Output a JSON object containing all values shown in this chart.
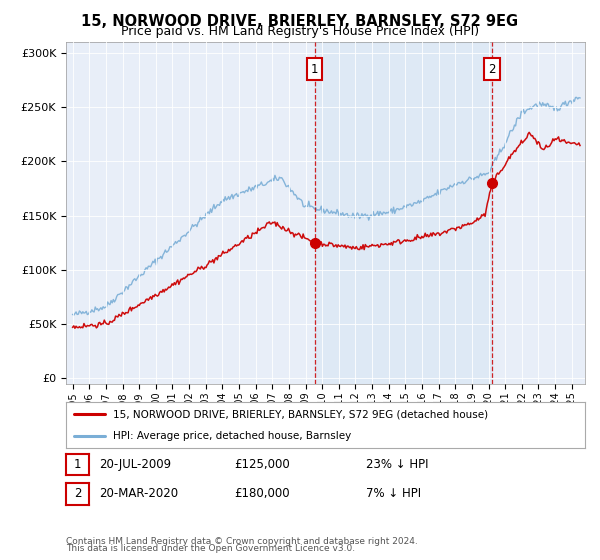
{
  "title": "15, NORWOOD DRIVE, BRIERLEY, BARNSLEY, S72 9EG",
  "subtitle": "Price paid vs. HM Land Registry's House Price Index (HPI)",
  "background_color": "#ffffff",
  "plot_bg_color": "#e8eef8",
  "y_ticks": [
    0,
    50000,
    100000,
    150000,
    200000,
    250000,
    300000
  ],
  "y_labels": [
    "£0",
    "£50K",
    "£100K",
    "£150K",
    "£200K",
    "£250K",
    "£300K"
  ],
  "purchase1_date": 2009.54,
  "purchase1_price": 125000,
  "purchase1_label": "1",
  "purchase2_date": 2020.21,
  "purchase2_price": 180000,
  "purchase2_label": "2",
  "legend_line1": "15, NORWOOD DRIVE, BRIERLEY, BARNSLEY, S72 9EG (detached house)",
  "legend_line2": "HPI: Average price, detached house, Barnsley",
  "ann1_date": "20-JUL-2009",
  "ann1_price": "£125,000",
  "ann1_hpi": "23% ↓ HPI",
  "ann2_date": "20-MAR-2020",
  "ann2_price": "£180,000",
  "ann2_hpi": "7% ↓ HPI",
  "footnote1": "Contains HM Land Registry data © Crown copyright and database right 2024.",
  "footnote2": "This data is licensed under the Open Government Licence v3.0.",
  "line_color_red": "#cc0000",
  "line_color_blue": "#7aaed6",
  "dashed_line_color": "#cc0000",
  "highlight_bg": "#dce8f5"
}
